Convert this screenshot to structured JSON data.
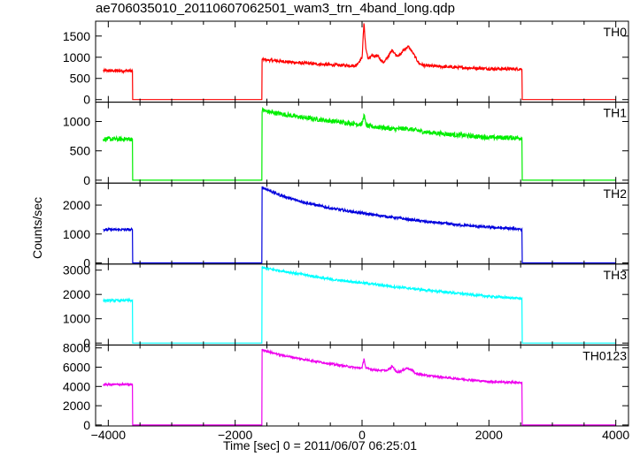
{
  "chart_data": {
    "type": "line",
    "title": "ae706035010_20110607062501_wam3_trn_4band_long.qdp",
    "xlabel": "Time [sec] 0 = 2011/06/07 06:25:01",
    "ylabel": "Counts/sec",
    "xlim": [
      -4200,
      4200
    ],
    "xticks": [
      -4000,
      -2000,
      0,
      2000,
      4000
    ],
    "xtick_labels": [
      "−4000",
      "−2000",
      "0",
      "2000",
      "4000"
    ],
    "grid": false,
    "panels": [
      {
        "name": "TH0",
        "color": "#ff0000",
        "ylim": [
          -60,
          1850
        ],
        "yticks": [
          0,
          500,
          1000,
          1500
        ],
        "ytick_labels": [
          "0",
          "500",
          "1000",
          "1500"
        ],
        "noise": 35,
        "points": [
          [
            -4080,
            680
          ],
          [
            -3620,
            680
          ],
          [
            -3620,
            0
          ],
          [
            -1580,
            0
          ],
          [
            -1580,
            950
          ],
          [
            -1500,
            935
          ],
          [
            -1000,
            870
          ],
          [
            -500,
            820
          ],
          [
            -100,
            800
          ],
          [
            0,
            990
          ],
          [
            30,
            1800
          ],
          [
            60,
            1200
          ],
          [
            100,
            950
          ],
          [
            150,
            1050
          ],
          [
            200,
            1000
          ],
          [
            250,
            1050
          ],
          [
            300,
            920
          ],
          [
            350,
            880
          ],
          [
            400,
            1000
          ],
          [
            480,
            1180
          ],
          [
            530,
            1050
          ],
          [
            600,
            1050
          ],
          [
            660,
            1180
          ],
          [
            730,
            1250
          ],
          [
            790,
            1130
          ],
          [
            840,
            1000
          ],
          [
            900,
            850
          ],
          [
            1000,
            800
          ],
          [
            1500,
            760
          ],
          [
            2000,
            730
          ],
          [
            2520,
            720
          ],
          [
            2520,
            0
          ],
          [
            4000,
            0
          ]
        ]
      },
      {
        "name": "TH1",
        "color": "#00ee00",
        "ylim": [
          -50,
          1330
        ],
        "yticks": [
          0,
          500,
          1000
        ],
        "ytick_labels": [
          "0",
          "500",
          "1000"
        ],
        "noise": 40,
        "points": [
          [
            -4080,
            700
          ],
          [
            -3620,
            700
          ],
          [
            -3620,
            0
          ],
          [
            -1580,
            0
          ],
          [
            -1580,
            1200
          ],
          [
            -1500,
            1170
          ],
          [
            -1000,
            1080
          ],
          [
            -500,
            1010
          ],
          [
            -100,
            960
          ],
          [
            0,
            950
          ],
          [
            30,
            1120
          ],
          [
            60,
            950
          ],
          [
            100,
            920
          ],
          [
            300,
            900
          ],
          [
            500,
            870
          ],
          [
            700,
            880
          ],
          [
            800,
            860
          ],
          [
            1000,
            820
          ],
          [
            1500,
            770
          ],
          [
            2000,
            730
          ],
          [
            2520,
            720
          ],
          [
            2520,
            0
          ],
          [
            4000,
            0
          ]
        ]
      },
      {
        "name": "TH2",
        "color": "#0000dd",
        "ylim": [
          -40,
          2760
        ],
        "yticks": [
          0,
          1000,
          2000
        ],
        "ytick_labels": [
          "0",
          "1000",
          "2000"
        ],
        "noise": 45,
        "points": [
          [
            -4080,
            1150
          ],
          [
            -3620,
            1150
          ],
          [
            -3620,
            0
          ],
          [
            -1580,
            0
          ],
          [
            -1580,
            2620
          ],
          [
            -1300,
            2350
          ],
          [
            -1000,
            2140
          ],
          [
            -500,
            1890
          ],
          [
            0,
            1720
          ],
          [
            500,
            1570
          ],
          [
            1000,
            1430
          ],
          [
            1500,
            1320
          ],
          [
            2000,
            1230
          ],
          [
            2520,
            1170
          ],
          [
            2520,
            0
          ],
          [
            4000,
            0
          ]
        ]
      },
      {
        "name": "TH3",
        "color": "#00ffff",
        "ylim": [
          -80,
          3250
        ],
        "yticks": [
          0,
          1000,
          2000,
          3000
        ],
        "ytick_labels": [
          "0",
          "1000",
          "2000",
          "3000"
        ],
        "noise": 45,
        "points": [
          [
            -4080,
            1750
          ],
          [
            -3620,
            1750
          ],
          [
            -3620,
            0
          ],
          [
            -1580,
            0
          ],
          [
            -1580,
            3100
          ],
          [
            -1300,
            2980
          ],
          [
            -1000,
            2850
          ],
          [
            -500,
            2620
          ],
          [
            0,
            2480
          ],
          [
            500,
            2320
          ],
          [
            1000,
            2180
          ],
          [
            1500,
            2050
          ],
          [
            2000,
            1920
          ],
          [
            2520,
            1830
          ],
          [
            2520,
            0
          ],
          [
            4000,
            0
          ]
        ]
      },
      {
        "name": "TH0123",
        "color": "#ee00ee",
        "ylim": [
          -100,
          8300
        ],
        "yticks": [
          0,
          2000,
          4000,
          6000,
          8000
        ],
        "ytick_labels": [
          "0",
          "2000",
          "4000",
          "6000",
          "8000"
        ],
        "noise": 100,
        "points": [
          [
            -4080,
            4200
          ],
          [
            -3620,
            4200
          ],
          [
            -3620,
            0
          ],
          [
            -1580,
            0
          ],
          [
            -1580,
            7800
          ],
          [
            -1300,
            7300
          ],
          [
            -1000,
            6900
          ],
          [
            -500,
            6350
          ],
          [
            -100,
            5950
          ],
          [
            0,
            5900
          ],
          [
            30,
            6900
          ],
          [
            60,
            5900
          ],
          [
            200,
            5700
          ],
          [
            400,
            5650
          ],
          [
            480,
            6100
          ],
          [
            540,
            5500
          ],
          [
            620,
            5600
          ],
          [
            700,
            5900
          ],
          [
            780,
            5750
          ],
          [
            840,
            5350
          ],
          [
            1000,
            5150
          ],
          [
            1500,
            4800
          ],
          [
            2000,
            4500
          ],
          [
            2520,
            4400
          ],
          [
            2520,
            0
          ],
          [
            4000,
            0
          ]
        ]
      }
    ]
  }
}
